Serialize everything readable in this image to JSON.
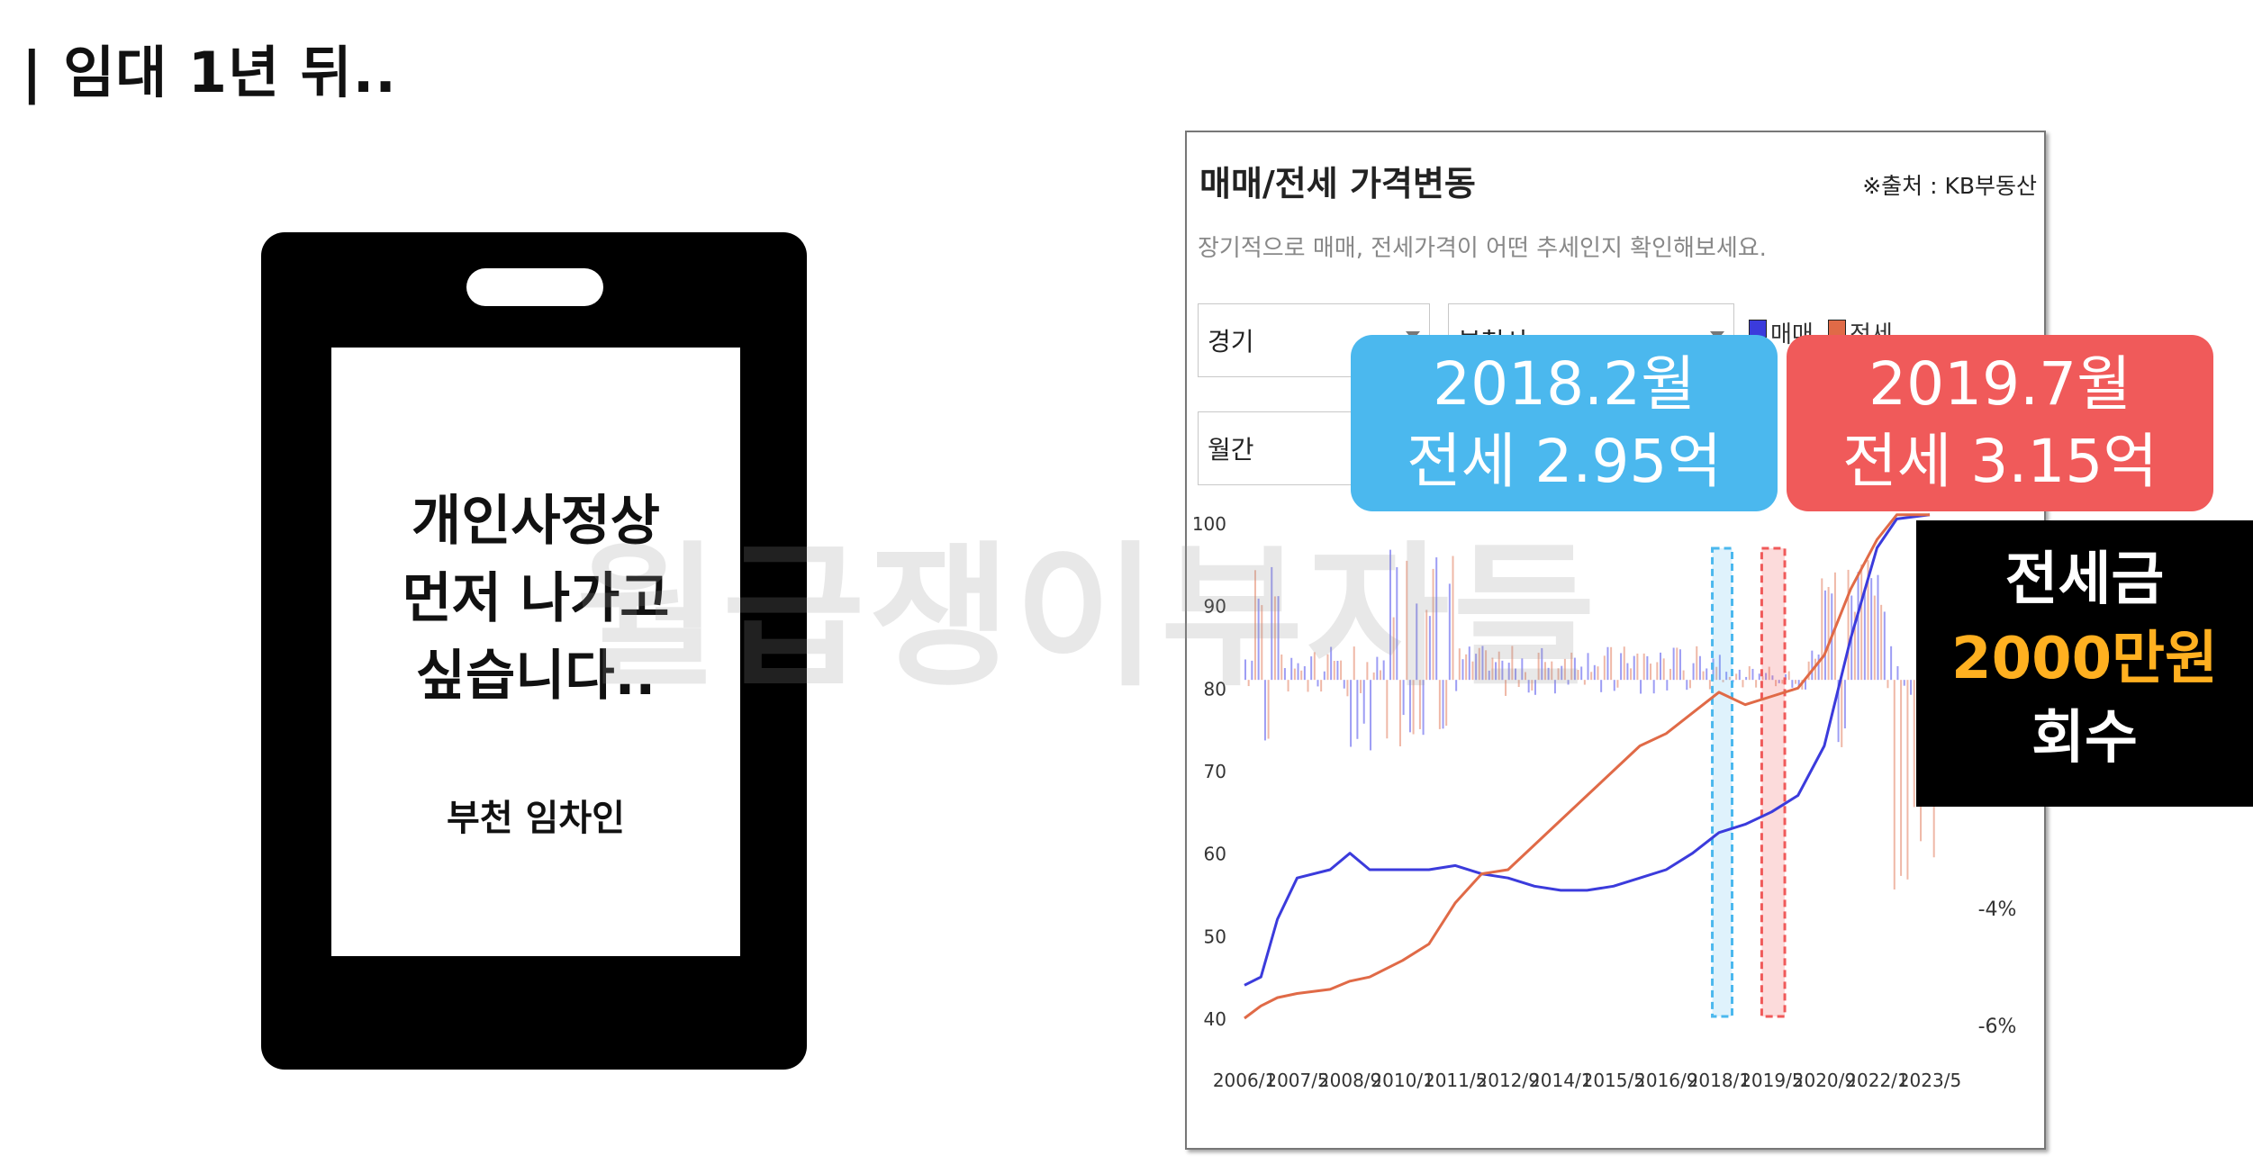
{
  "heading": "| 임대 1년 뒤..",
  "phone": {
    "message": "개인사정상\n먼저 나가고\n싶습니다..",
    "author": "부천 임차인"
  },
  "watermark": "월급쟁이부자들",
  "panel": {
    "title": "매매/전세 가격변동",
    "source": "※출처 : KB부동산",
    "subtitle": "장기적으로 매매, 전세가격이 어떤 추세인지 확인해보세요.",
    "select_region": "경기",
    "select_city": "부천시",
    "select_period": "월간",
    "legend": {
      "sale": "매매",
      "jeonse": "전세"
    }
  },
  "callouts": {
    "c2018": {
      "line1": "2018.2월",
      "line2": "전세 2.95억"
    },
    "c2019": {
      "line1": "2019.7월",
      "line2": "전세 3.15억"
    }
  },
  "summary": {
    "line1": "전세금",
    "line2": "2000만원",
    "line3": "회수"
  },
  "colors": {
    "sale": "#3b3bdc",
    "jeonse": "#e06a47",
    "callout_2018": "#4bb8ee",
    "callout_2019": "#f05a5a",
    "summary_highlight": "#ffb020"
  },
  "chart_data": {
    "type": "line",
    "x_tick_labels": [
      "2006/1",
      "2007/5",
      "2008/9",
      "2010/1",
      "2011/5",
      "2012/9",
      "2014/1",
      "2015/5",
      "2016/9",
      "2018/1",
      "2019/5",
      "2020/9",
      "2022/1",
      "2023/5"
    ],
    "y_left_ticks": [
      100,
      90,
      80,
      70,
      60,
      50,
      40
    ],
    "y_left_range": [
      40,
      100
    ],
    "y_right_visible_ticks": [
      "-4%",
      "-6%"
    ],
    "x": [
      "2006/1",
      "2006/6",
      "2006/11",
      "2007/5",
      "2008/3",
      "2008/9",
      "2009/3",
      "2010/1",
      "2010/9",
      "2011/5",
      "2012/1",
      "2012/9",
      "2013/5",
      "2014/1",
      "2014/9",
      "2015/5",
      "2016/1",
      "2016/9",
      "2017/5",
      "2018/1",
      "2018/9",
      "2019/5",
      "2020/1",
      "2020/9",
      "2021/5",
      "2022/1",
      "2022/7",
      "2023/5"
    ],
    "series": [
      {
        "name": "매매",
        "values": [
          44,
          45,
          52,
          57,
          58,
          60,
          58,
          58,
          58,
          58.5,
          57.5,
          57,
          56,
          55.5,
          55.5,
          56,
          57,
          58,
          60,
          62.5,
          63.5,
          65,
          67,
          73,
          86,
          97,
          100.5,
          101
        ]
      },
      {
        "name": "전세",
        "values": [
          40,
          41.5,
          42.5,
          43,
          43.5,
          44.5,
          45,
          47,
          49,
          54,
          57.5,
          58,
          61,
          64,
          67,
          70,
          73,
          74.5,
          77,
          79.5,
          78,
          79,
          80,
          84,
          92,
          98,
          101,
          101
        ]
      }
    ],
    "grid": false,
    "legend_position": "top-right"
  }
}
